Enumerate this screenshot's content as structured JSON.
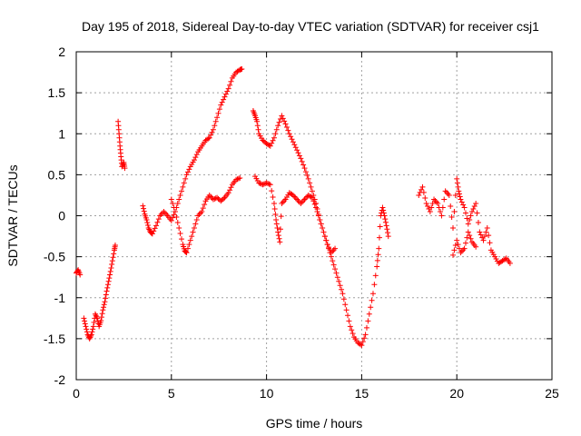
{
  "chart_data": {
    "type": "scatter",
    "title": "Day 195 of 2018, Sidereal Day-to-day VTEC variation (SDTVAR) for receiver csj1",
    "xlabel": "GPS time / hours",
    "ylabel": "SDTVAR / TECUs",
    "xlim": [
      0,
      25
    ],
    "ylim": [
      -2,
      2
    ],
    "xticks": [
      0,
      5,
      10,
      15,
      20,
      25
    ],
    "yticks": [
      -2,
      -1.5,
      -1,
      -0.5,
      0,
      0.5,
      1,
      1.5,
      2
    ],
    "grid": true,
    "marker": "+",
    "marker_color": "#ff0000",
    "series": [
      {
        "name": "SDTVAR",
        "segments": [
          {
            "points": [
              [
                0.0,
                -0.7
              ],
              [
                0.1,
                -0.66
              ],
              [
                0.2,
                -0.72
              ]
            ]
          },
          {
            "points": [
              [
                0.4,
                -1.25
              ],
              [
                0.5,
                -1.35
              ],
              [
                0.6,
                -1.45
              ],
              [
                0.7,
                -1.5
              ],
              [
                0.8,
                -1.45
              ],
              [
                0.9,
                -1.35
              ],
              [
                1.0,
                -1.2
              ],
              [
                1.1,
                -1.25
              ],
              [
                1.2,
                -1.35
              ],
              [
                1.3,
                -1.28
              ],
              [
                1.4,
                -1.15
              ],
              [
                1.5,
                -1.05
              ],
              [
                1.6,
                -0.92
              ],
              [
                1.7,
                -0.8
              ],
              [
                1.8,
                -0.68
              ],
              [
                1.9,
                -0.55
              ],
              [
                2.0,
                -0.42
              ],
              [
                2.05,
                -0.36
              ]
            ]
          },
          {
            "points": [
              [
                2.2,
                1.15
              ],
              [
                2.25,
                1.0
              ],
              [
                2.3,
                0.85
              ],
              [
                2.35,
                0.72
              ],
              [
                2.4,
                0.6
              ],
              [
                2.5,
                0.65
              ],
              [
                2.55,
                0.58
              ]
            ]
          },
          {
            "points": [
              [
                3.5,
                0.12
              ],
              [
                3.6,
                0.02
              ],
              [
                3.7,
                -0.05
              ],
              [
                3.8,
                -0.15
              ],
              [
                3.9,
                -0.2
              ],
              [
                4.0,
                -0.22
              ],
              [
                4.2,
                -0.12
              ],
              [
                4.4,
                0.0
              ],
              [
                4.6,
                0.05
              ],
              [
                4.8,
                0.0
              ],
              [
                5.0,
                -0.06
              ],
              [
                5.2,
                0.05
              ],
              [
                5.4,
                0.2
              ],
              [
                5.6,
                0.35
              ],
              [
                5.8,
                0.5
              ],
              [
                6.0,
                0.6
              ],
              [
                6.2,
                0.68
              ],
              [
                6.4,
                0.78
              ],
              [
                6.6,
                0.85
              ],
              [
                6.8,
                0.92
              ],
              [
                7.0,
                0.95
              ],
              [
                7.2,
                1.05
              ],
              [
                7.4,
                1.2
              ],
              [
                7.6,
                1.35
              ],
              [
                7.8,
                1.45
              ],
              [
                8.0,
                1.55
              ],
              [
                8.2,
                1.68
              ],
              [
                8.4,
                1.75
              ],
              [
                8.6,
                1.78
              ],
              [
                8.7,
                1.79
              ]
            ]
          },
          {
            "points": [
              [
                5.0,
                0.2
              ],
              [
                5.2,
                0.05
              ],
              [
                5.4,
                -0.15
              ],
              [
                5.6,
                -0.35
              ],
              [
                5.7,
                -0.43
              ],
              [
                5.8,
                -0.45
              ],
              [
                6.0,
                -0.3
              ],
              [
                6.2,
                -0.15
              ],
              [
                6.4,
                0.0
              ],
              [
                6.6,
                0.05
              ],
              [
                6.8,
                0.18
              ],
              [
                7.0,
                0.25
              ],
              [
                7.2,
                0.2
              ],
              [
                7.4,
                0.22
              ],
              [
                7.6,
                0.18
              ],
              [
                7.8,
                0.22
              ],
              [
                8.0,
                0.28
              ],
              [
                8.2,
                0.38
              ],
              [
                8.4,
                0.44
              ],
              [
                8.6,
                0.46
              ]
            ]
          },
          {
            "points": [
              [
                9.3,
                1.28
              ],
              [
                9.4,
                1.22
              ],
              [
                9.5,
                1.15
              ],
              [
                9.6,
                1.0
              ],
              [
                9.8,
                0.92
              ],
              [
                10.0,
                0.88
              ],
              [
                10.2,
                0.85
              ],
              [
                10.4,
                0.95
              ],
              [
                10.6,
                1.1
              ],
              [
                10.8,
                1.22
              ],
              [
                11.0,
                1.12
              ],
              [
                11.2,
                1.0
              ],
              [
                11.4,
                0.9
              ],
              [
                11.6,
                0.8
              ],
              [
                11.8,
                0.7
              ],
              [
                12.0,
                0.58
              ],
              [
                12.2,
                0.45
              ],
              [
                12.4,
                0.3
              ],
              [
                12.6,
                0.15
              ],
              [
                12.8,
                -0.05
              ],
              [
                13.0,
                -0.2
              ],
              [
                13.2,
                -0.35
              ],
              [
                13.4,
                -0.5
              ],
              [
                13.6,
                -0.65
              ],
              [
                13.8,
                -0.8
              ],
              [
                14.0,
                -0.95
              ],
              [
                14.2,
                -1.15
              ],
              [
                14.4,
                -1.35
              ],
              [
                14.6,
                -1.48
              ],
              [
                14.8,
                -1.55
              ],
              [
                15.0,
                -1.58
              ],
              [
                15.2,
                -1.45
              ],
              [
                15.4,
                -1.2
              ],
              [
                15.6,
                -0.95
              ],
              [
                15.8,
                -0.62
              ],
              [
                15.9,
                -0.4
              ],
              [
                16.0,
                0.0
              ],
              [
                16.1,
                0.1
              ],
              [
                16.2,
                0.0
              ],
              [
                16.3,
                -0.12
              ],
              [
                16.4,
                -0.25
              ]
            ]
          },
          {
            "points": [
              [
                9.4,
                0.48
              ],
              [
                9.6,
                0.4
              ],
              [
                9.8,
                0.38
              ],
              [
                10.0,
                0.4
              ],
              [
                10.2,
                0.38
              ],
              [
                10.4,
                0.15
              ],
              [
                10.5,
                -0.05
              ],
              [
                10.6,
                -0.2
              ],
              [
                10.7,
                -0.32
              ],
              [
                10.8,
                0.15
              ],
              [
                11.0,
                0.2
              ],
              [
                11.2,
                0.28
              ],
              [
                11.4,
                0.25
              ],
              [
                11.6,
                0.2
              ],
              [
                11.8,
                0.15
              ],
              [
                12.0,
                0.2
              ],
              [
                12.2,
                0.25
              ],
              [
                12.4,
                0.22
              ],
              [
                12.6,
                0.1
              ],
              [
                12.8,
                -0.05
              ],
              [
                13.0,
                -0.2
              ],
              [
                13.2,
                -0.35
              ],
              [
                13.4,
                -0.45
              ],
              [
                13.6,
                -0.4
              ]
            ]
          },
          {
            "points": [
              [
                18.0,
                0.25
              ],
              [
                18.2,
                0.35
              ],
              [
                18.4,
                0.15
              ],
              [
                18.6,
                0.05
              ],
              [
                18.8,
                0.2
              ],
              [
                19.0,
                0.15
              ],
              [
                19.2,
                0.0
              ],
              [
                19.4,
                0.3
              ],
              [
                19.6,
                0.25
              ],
              [
                19.8,
                -0.15
              ],
              [
                20.0,
                0.45
              ],
              [
                20.1,
                0.3
              ],
              [
                20.2,
                0.2
              ],
              [
                20.4,
                0.1
              ],
              [
                20.6,
                -0.1
              ],
              [
                20.8,
                0.05
              ],
              [
                21.0,
                0.15
              ],
              [
                21.2,
                -0.2
              ],
              [
                21.4,
                -0.3
              ],
              [
                21.6,
                -0.15
              ],
              [
                21.8,
                -0.42
              ],
              [
                22.0,
                -0.5
              ],
              [
                22.2,
                -0.58
              ],
              [
                22.4,
                -0.55
              ],
              [
                22.6,
                -0.52
              ],
              [
                22.8,
                -0.58
              ]
            ]
          },
          {
            "points": [
              [
                19.8,
                -0.48
              ],
              [
                20.0,
                -0.3
              ],
              [
                20.2,
                -0.45
              ],
              [
                20.4,
                -0.4
              ],
              [
                20.6,
                -0.2
              ],
              [
                20.8,
                -0.32
              ],
              [
                21.0,
                -0.38
              ]
            ]
          }
        ]
      }
    ]
  }
}
